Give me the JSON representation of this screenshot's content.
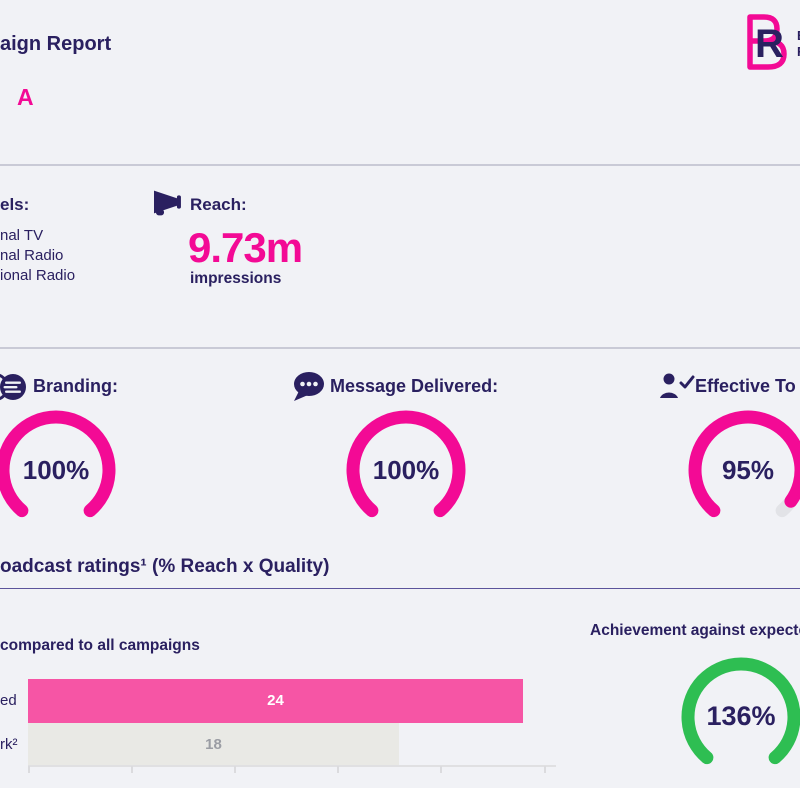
{
  "colors": {
    "background": "#F1F2F6",
    "navy": "#2A2060",
    "pink": "#F30A95",
    "bar_pink": "#F655A5",
    "benchmark_gray": "#E9E9E5",
    "benchmark_text": "#9B9DA4",
    "green": "#2EBE52",
    "gauge_track_gray": "#E2E3E7"
  },
  "header": {
    "title_fragment": "aign Report",
    "campaign_fragment": "A",
    "logo": {
      "letters": "BR",
      "inner_letter": "R",
      "side_line1_fragment": "B",
      "side_line2_fragment": "R"
    }
  },
  "overview": {
    "channels": {
      "label_fragment": "els:",
      "items": [
        {
          "label_fragment": "nal TV"
        },
        {
          "label_fragment": "nal Radio"
        },
        {
          "label_fragment": "ional Radio"
        }
      ]
    },
    "reach": {
      "label": "Reach:",
      "value": "9.73m",
      "caption": "impressions"
    }
  },
  "kpi_gauges": [
    {
      "label_fragment": "Branding:",
      "value_text": "100%",
      "percent": 100,
      "color": "#F30A95",
      "icon": "coins-icon"
    },
    {
      "label_fragment": "Message Delivered:",
      "value_text": "100%",
      "percent": 100,
      "color": "#F30A95",
      "icon": "chat-bubble-icon"
    },
    {
      "label_fragment": "Effective To",
      "value_text": "95%",
      "percent": 95,
      "color": "#F30A95",
      "icon": "person-check-icon"
    }
  ],
  "ratings": {
    "heading_fragment": "oadcast ratings¹ (% Reach x Quality)",
    "comparison": {
      "caption_fragment": "compared to all campaigns",
      "axis_max": 25,
      "axis_tick_step": 5,
      "bars": [
        {
          "label_fragment": "ed",
          "value": 24,
          "color": "#F655A5",
          "value_color": "#FFFFFF"
        },
        {
          "label_fragment": "rk²",
          "value": 18,
          "color": "#E9E9E5",
          "value_color": "#9B9DA4"
        }
      ]
    },
    "achievement": {
      "caption_fragment": "Achievement against expecte",
      "value_text": "136%",
      "percent": 136,
      "color": "#2EBE52"
    }
  },
  "chart_data": [
    {
      "type": "bar",
      "orientation": "horizontal",
      "title": "compared to all campaigns",
      "categories": [
        "ed",
        "rk²"
      ],
      "values": [
        24,
        18
      ],
      "xlim": [
        0,
        25
      ],
      "bar_colors": [
        "#F655A5",
        "#E9E9E5"
      ],
      "grid": false
    },
    {
      "type": "gauge",
      "label": "Branding:",
      "value": 100,
      "unit": "%"
    },
    {
      "type": "gauge",
      "label": "Message Delivered:",
      "value": 100,
      "unit": "%"
    },
    {
      "type": "gauge",
      "label": "Effective To",
      "value": 95,
      "unit": "%"
    },
    {
      "type": "gauge",
      "label": "Achievement against expecte",
      "value": 136,
      "unit": "%"
    },
    {
      "type": "kpi",
      "label": "Reach:",
      "value": "9.73m",
      "unit": "impressions"
    }
  ]
}
